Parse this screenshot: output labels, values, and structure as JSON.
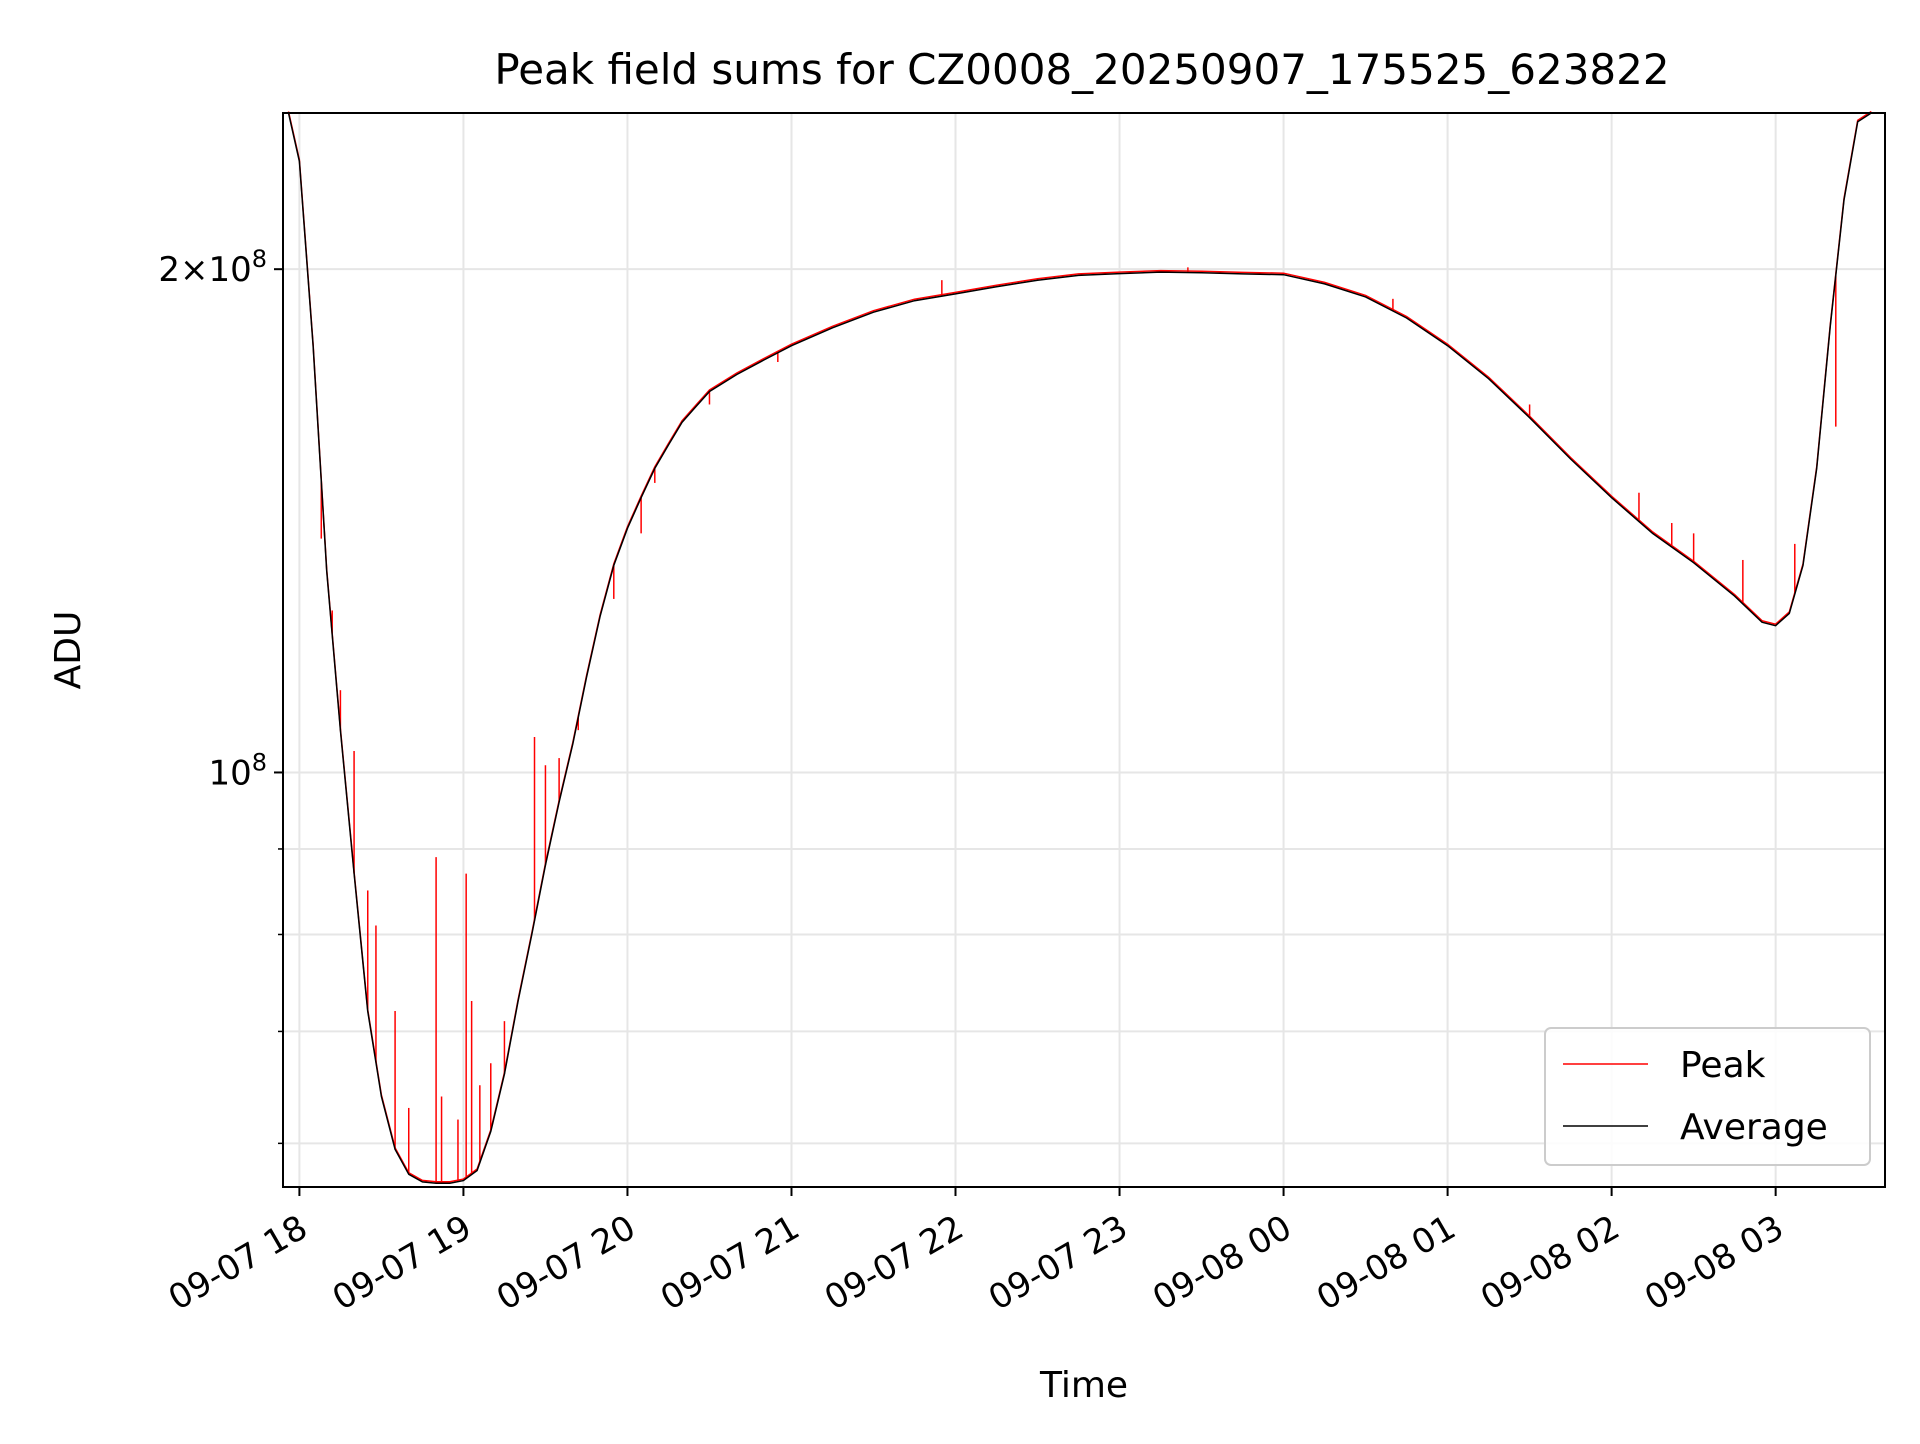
{
  "chart_data": {
    "type": "line",
    "title": "Peak field sums for CZ0008_20250907_175525_623822",
    "xlabel": "Time",
    "ylabel": "ADU",
    "x_range": [
      "2025-09-07 17:54",
      "2025-09-08 03:40"
    ],
    "y_scale": "log",
    "ylim": [
      56500000,
      248000000
    ],
    "grid": true,
    "legend_position": "lower-right",
    "x_ticks": [
      {
        "t": "2025-09-07 18:00",
        "label": "09-07 18"
      },
      {
        "t": "2025-09-07 19:00",
        "label": "09-07 19"
      },
      {
        "t": "2025-09-07 20:00",
        "label": "09-07 20"
      },
      {
        "t": "2025-09-07 21:00",
        "label": "09-07 21"
      },
      {
        "t": "2025-09-07 22:00",
        "label": "09-07 22"
      },
      {
        "t": "2025-09-07 23:00",
        "label": "09-07 23"
      },
      {
        "t": "2025-09-08 00:00",
        "label": "09-08 00"
      },
      {
        "t": "2025-09-08 01:00",
        "label": "09-08 01"
      },
      {
        "t": "2025-09-08 02:00",
        "label": "09-08 02"
      },
      {
        "t": "2025-09-08 03:00",
        "label": "09-08 03"
      }
    ],
    "y_major_ticks": [
      {
        "value": 100000000,
        "label": "10^8"
      },
      {
        "value": 200000000,
        "label": "2×10^8"
      }
    ],
    "y_minor_ticks": [
      60000000,
      70000000,
      80000000,
      90000000
    ],
    "series": [
      {
        "name": "Average",
        "color": "#000000",
        "points": [
          [
            "2025-09-07 17:56",
            248000000
          ],
          [
            "2025-09-07 18:00",
            232000000
          ],
          [
            "2025-09-07 18:05",
            180000000
          ],
          [
            "2025-09-07 18:10",
            132000000
          ],
          [
            "2025-09-07 18:15",
            106000000
          ],
          [
            "2025-09-07 18:20",
            87000000
          ],
          [
            "2025-09-07 18:25",
            72000000
          ],
          [
            "2025-09-07 18:30",
            64000000
          ],
          [
            "2025-09-07 18:35",
            59500000
          ],
          [
            "2025-09-07 18:40",
            57500000
          ],
          [
            "2025-09-07 18:45",
            56900000
          ],
          [
            "2025-09-07 18:50",
            56800000
          ],
          [
            "2025-09-07 18:55",
            56800000
          ],
          [
            "2025-09-07 19:00",
            57000000
          ],
          [
            "2025-09-07 19:05",
            57800000
          ],
          [
            "2025-09-07 19:10",
            61000000
          ],
          [
            "2025-09-07 19:15",
            66000000
          ],
          [
            "2025-09-07 19:20",
            73000000
          ],
          [
            "2025-09-07 19:25",
            80000000
          ],
          [
            "2025-09-07 19:30",
            88000000
          ],
          [
            "2025-09-07 19:35",
            96000000
          ],
          [
            "2025-09-07 19:40",
            104000000
          ],
          [
            "2025-09-07 19:45",
            114000000
          ],
          [
            "2025-09-07 19:50",
            124000000
          ],
          [
            "2025-09-07 19:55",
            133000000
          ],
          [
            "2025-09-07 20:00",
            140000000
          ],
          [
            "2025-09-07 20:05",
            146000000
          ],
          [
            "2025-09-07 20:10",
            152000000
          ],
          [
            "2025-09-07 20:15",
            157000000
          ],
          [
            "2025-09-07 20:20",
            162000000
          ],
          [
            "2025-09-07 20:25",
            165500000
          ],
          [
            "2025-09-07 20:30",
            169000000
          ],
          [
            "2025-09-07 20:40",
            173000000
          ],
          [
            "2025-09-07 20:50",
            176500000
          ],
          [
            "2025-09-07 21:00",
            180000000
          ],
          [
            "2025-09-07 21:15",
            184500000
          ],
          [
            "2025-09-07 21:30",
            188500000
          ],
          [
            "2025-09-07 21:45",
            191500000
          ],
          [
            "2025-09-07 22:00",
            193300000
          ],
          [
            "2025-09-07 22:15",
            195200000
          ],
          [
            "2025-09-07 22:30",
            197000000
          ],
          [
            "2025-09-07 22:45",
            198300000
          ],
          [
            "2025-09-07 23:00",
            198800000
          ],
          [
            "2025-09-07 23:15",
            199200000
          ],
          [
            "2025-09-07 23:30",
            199000000
          ],
          [
            "2025-09-07 23:45",
            198700000
          ],
          [
            "2025-09-08 00:00",
            198500000
          ],
          [
            "2025-09-08 00:15",
            196000000
          ],
          [
            "2025-09-08 00:30",
            192500000
          ],
          [
            "2025-09-08 00:45",
            187000000
          ],
          [
            "2025-09-08 01:00",
            180000000
          ],
          [
            "2025-09-08 01:15",
            172000000
          ],
          [
            "2025-09-08 01:30",
            163000000
          ],
          [
            "2025-09-08 01:45",
            154000000
          ],
          [
            "2025-09-08 02:00",
            146000000
          ],
          [
            "2025-09-08 02:15",
            139000000
          ],
          [
            "2025-09-08 02:30",
            133500000
          ],
          [
            "2025-09-08 02:45",
            127500000
          ],
          [
            "2025-09-08 02:55",
            123000000
          ],
          [
            "2025-09-08 03:00",
            122400000
          ],
          [
            "2025-09-08 03:05",
            124500000
          ],
          [
            "2025-09-08 03:10",
            133000000
          ],
          [
            "2025-09-08 03:15",
            152000000
          ],
          [
            "2025-09-08 03:20",
            185000000
          ],
          [
            "2025-09-08 03:25",
            220000000
          ],
          [
            "2025-09-08 03:30",
            245000000
          ],
          [
            "2025-09-08 03:35",
            248000000
          ]
        ]
      },
      {
        "name": "Peak",
        "color": "#ff0000",
        "spikes": [
          [
            "2025-09-07 18:08",
            138000000
          ],
          [
            "2025-09-07 18:12",
            125000000
          ],
          [
            "2025-09-07 18:15",
            112000000
          ],
          [
            "2025-09-07 18:20",
            103000000
          ],
          [
            "2025-09-07 18:25",
            85000000
          ],
          [
            "2025-09-07 18:28",
            81000000
          ],
          [
            "2025-09-07 18:35",
            72000000
          ],
          [
            "2025-09-07 18:40",
            63000000
          ],
          [
            "2025-09-07 18:50",
            89000000
          ],
          [
            "2025-09-07 18:52",
            64000000
          ],
          [
            "2025-09-07 18:58",
            62000000
          ],
          [
            "2025-09-07 19:01",
            87000000
          ],
          [
            "2025-09-07 19:03",
            73000000
          ],
          [
            "2025-09-07 19:06",
            65000000
          ],
          [
            "2025-09-07 19:10",
            67000000
          ],
          [
            "2025-09-07 19:15",
            71000000
          ],
          [
            "2025-09-07 19:26",
            105000000
          ],
          [
            "2025-09-07 19:30",
            101000000
          ],
          [
            "2025-09-07 19:35",
            102000000
          ],
          [
            "2025-09-07 19:42",
            106000000
          ],
          [
            "2025-09-07 19:55",
            127000000
          ],
          [
            "2025-09-07 20:05",
            139000000
          ],
          [
            "2025-09-07 20:10",
            149000000
          ],
          [
            "2025-09-07 20:30",
            166000000
          ],
          [
            "2025-09-07 20:55",
            176000000
          ],
          [
            "2025-09-07 21:55",
            197000000
          ],
          [
            "2025-09-07 23:25",
            200500000
          ],
          [
            "2025-09-08 00:40",
            192000000
          ],
          [
            "2025-09-08 01:30",
            166000000
          ],
          [
            "2025-09-08 02:10",
            147000000
          ],
          [
            "2025-09-08 02:22",
            141000000
          ],
          [
            "2025-09-08 02:30",
            139000000
          ],
          [
            "2025-09-08 02:48",
            134000000
          ],
          [
            "2025-09-08 03:07",
            137000000
          ],
          [
            "2025-09-08 03:22",
            161000000
          ]
        ]
      }
    ]
  }
}
